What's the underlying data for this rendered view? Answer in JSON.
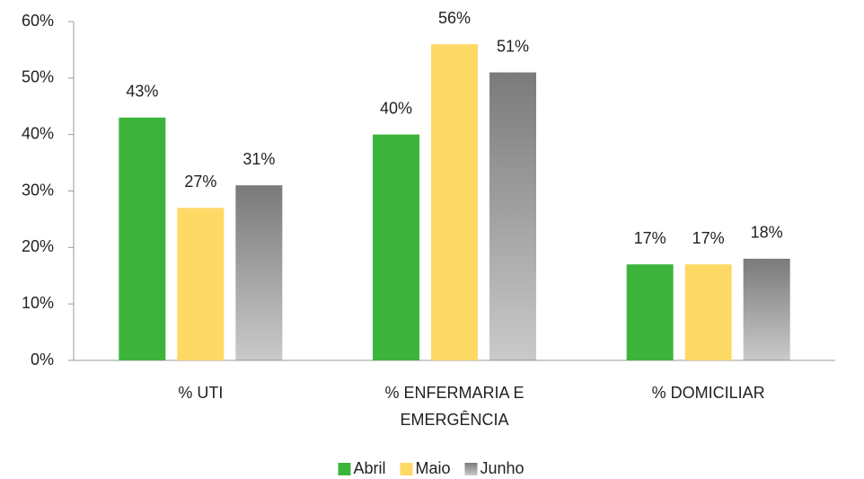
{
  "chart_data": {
    "type": "bar",
    "categories": [
      "% UTI",
      "% ENFERMARIA E EMERGÊNCIA",
      "% DOMICILIAR"
    ],
    "series": [
      {
        "name": "Abril",
        "color": "#3cb43c",
        "values": [
          43,
          40,
          17
        ],
        "value_labels": [
          "43%",
          "40%",
          "17%"
        ]
      },
      {
        "name": "Maio",
        "color": "#ffd966",
        "values": [
          27,
          56,
          17
        ],
        "value_labels": [
          "27%",
          "56%",
          "17%"
        ]
      },
      {
        "name": "Junho",
        "color": "#7a7a7a",
        "gradient": true,
        "values": [
          31,
          51,
          18
        ],
        "value_labels": [
          "31%",
          "51%",
          "18%"
        ]
      }
    ],
    "ylim": [
      0,
      60
    ],
    "yticks": [
      {
        "value": 0,
        "label": "0%"
      },
      {
        "value": 10,
        "label": "10%"
      },
      {
        "value": 20,
        "label": "20%"
      },
      {
        "value": 30,
        "label": "30%"
      },
      {
        "value": 40,
        "label": "40%"
      },
      {
        "value": 50,
        "label": "50%"
      },
      {
        "value": 60,
        "label": "60%"
      }
    ],
    "grid": false,
    "legend": "bottom"
  }
}
